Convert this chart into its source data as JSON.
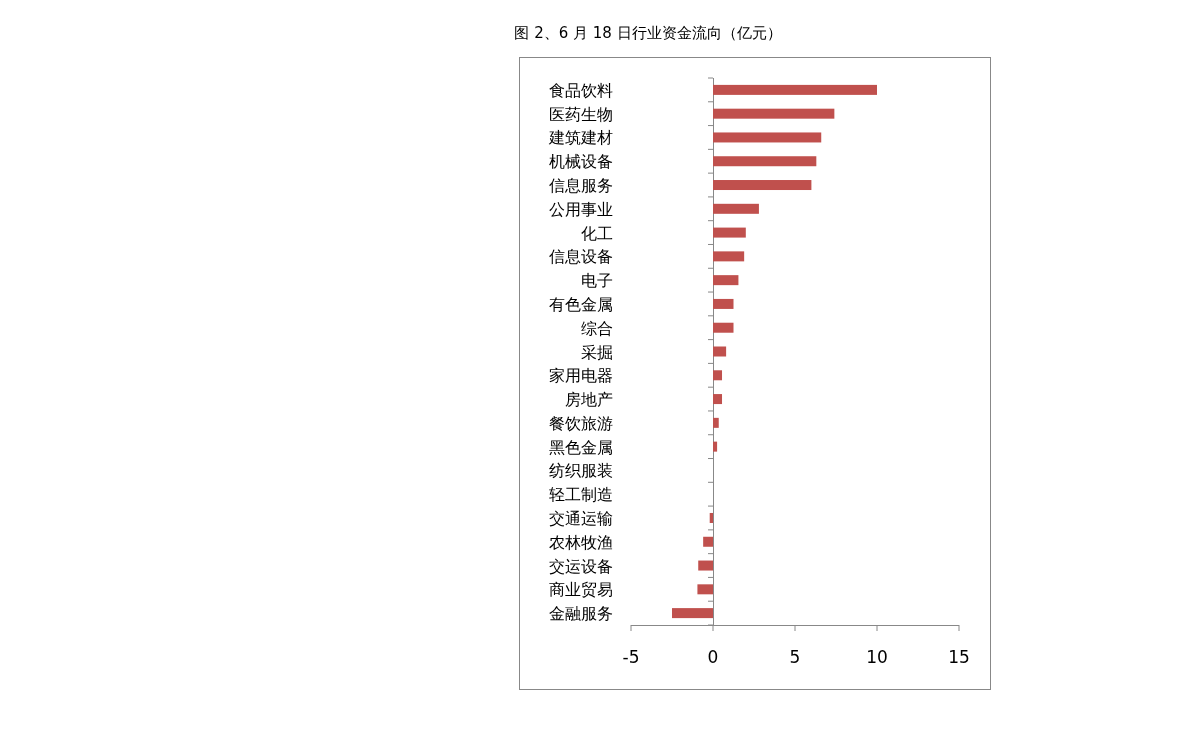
{
  "chart_data": {
    "type": "bar",
    "orientation": "horizontal",
    "title": "图 2、6 月 18 日行业资金流向（亿元）",
    "categories": [
      "食品饮料",
      "医药生物",
      "建筑建材",
      "机械设备",
      "信息服务",
      "公用事业",
      "化工",
      "信息设备",
      "电子",
      "有色金属",
      "综合",
      "采掘",
      "家用电器",
      "房地产",
      "餐饮旅游",
      "黑色金属",
      "纺织服装",
      "轻工制造",
      "交通运输",
      "农林牧渔",
      "交运设备",
      "商业贸易",
      "金融服务"
    ],
    "values": [
      10.0,
      7.4,
      6.6,
      6.3,
      6.0,
      2.8,
      2.0,
      1.9,
      1.55,
      1.25,
      1.25,
      0.8,
      0.55,
      0.55,
      0.35,
      0.25,
      0,
      0,
      -0.2,
      -0.6,
      -0.9,
      -0.95,
      -2.5
    ],
    "color": "#c0504d",
    "xlim": [
      -5,
      15
    ],
    "xticks": [
      -5,
      0,
      5,
      10,
      15
    ]
  }
}
